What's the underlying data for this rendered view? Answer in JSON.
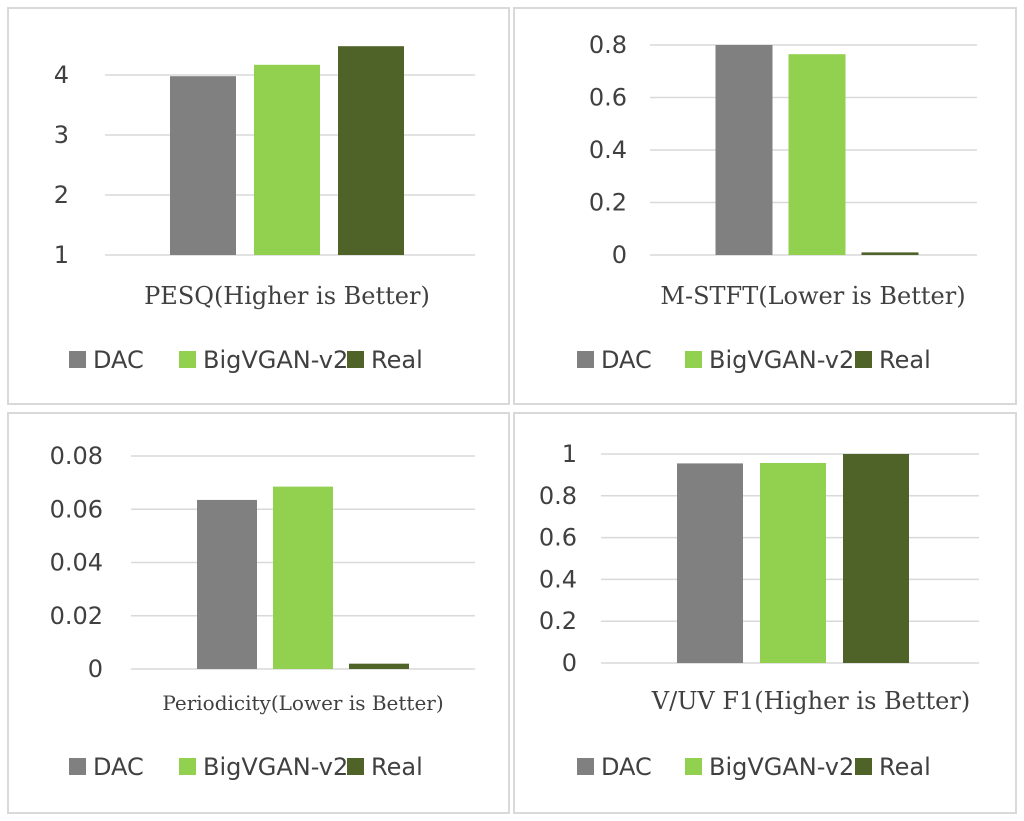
{
  "legend": [
    "DAC",
    "BigVGAN-v2",
    "Real"
  ],
  "colors": {
    "DAC": "#808080",
    "BigVGAN-v2": "#92d050",
    "Real": "#4f6228",
    "grid": "#d9d9d9",
    "text": "#404040"
  },
  "chart_data": [
    {
      "type": "bar",
      "title": "PESQ(Higher is Better)",
      "categories": [
        "DAC",
        "BigVGAN-v2",
        "Real"
      ],
      "values": [
        3.98,
        4.17,
        4.48
      ],
      "yticks": [
        "1",
        "2",
        "3",
        "4"
      ],
      "ylim": [
        1,
        4.5
      ],
      "grid": true,
      "legend_position": "bottom"
    },
    {
      "type": "bar",
      "title": "M-STFT(Lower is Better)",
      "categories": [
        "DAC",
        "BigVGAN-v2",
        "Real"
      ],
      "values": [
        0.8,
        0.765,
        0.01
      ],
      "yticks": [
        "0",
        "0.2",
        "0.4",
        "0.6",
        "0.8"
      ],
      "ylim": [
        0,
        0.8
      ],
      "grid": true,
      "legend_position": "bottom"
    },
    {
      "type": "bar",
      "title": "Periodicity(Lower is Better)",
      "categories": [
        "DAC",
        "BigVGAN-v2",
        "Real"
      ],
      "values": [
        0.0635,
        0.0685,
        0.002
      ],
      "yticks": [
        "0",
        "0.02",
        "0.04",
        "0.06",
        "0.08"
      ],
      "ylim": [
        0,
        0.08
      ],
      "grid": true,
      "legend_position": "bottom"
    },
    {
      "type": "bar",
      "title": "V/UV F1(Higher is Better)",
      "categories": [
        "DAC",
        "BigVGAN-v2",
        "Real"
      ],
      "values": [
        0.955,
        0.957,
        1.0
      ],
      "yticks": [
        "0",
        "0.2",
        "0.4",
        "0.6",
        "0.8",
        "1"
      ],
      "ylim": [
        0,
        1
      ],
      "grid": true,
      "legend_position": "bottom"
    }
  ]
}
